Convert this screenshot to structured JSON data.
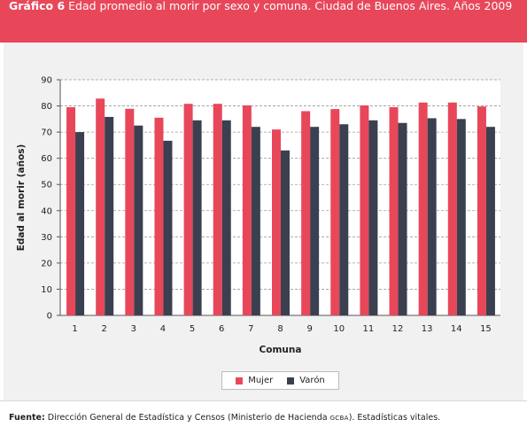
{
  "header": {
    "label": "Gráfico 6",
    "title": "Edad promedio al morir por sexo y comuna. Ciudad de Buenos Aires. Años 2009"
  },
  "footer": {
    "label": "Fuente:",
    "text_before": " Dirección General de Estadística y Censos (Ministerio de Hacienda ",
    "abbr": "GCBA",
    "text_after": "). Estadísticas vitales."
  },
  "colors": {
    "mujer": "#e8475a",
    "varon": "#3b4050",
    "header_bg": "#e8475a",
    "panel_bg": "#f1f1f2"
  },
  "chart_data": {
    "type": "bar",
    "title": "Edad promedio al morir por sexo y comuna. Ciudad de Buenos Aires. Años 2009",
    "xlabel": "Comuna",
    "ylabel": "Edad al morir (años)",
    "ylim": [
      0,
      90
    ],
    "yticks": [
      0,
      10,
      20,
      30,
      40,
      50,
      60,
      70,
      80,
      90
    ],
    "grid": true,
    "legend_position": "bottom",
    "categories": [
      "1",
      "2",
      "3",
      "4",
      "5",
      "6",
      "7",
      "8",
      "9",
      "10",
      "11",
      "12",
      "13",
      "14",
      "15"
    ],
    "series": [
      {
        "name": "Mujer",
        "values": [
          79.5,
          82.8,
          78.9,
          75.5,
          80.8,
          80.8,
          80.2,
          71.0,
          78.0,
          78.8,
          80.2,
          79.5,
          81.3,
          81.3,
          79.8
        ]
      },
      {
        "name": "Varón",
        "values": [
          70.0,
          75.8,
          72.5,
          66.7,
          74.5,
          74.5,
          72.0,
          63.0,
          72.0,
          73.0,
          74.5,
          73.5,
          75.3,
          75.0,
          72.0
        ]
      }
    ]
  }
}
